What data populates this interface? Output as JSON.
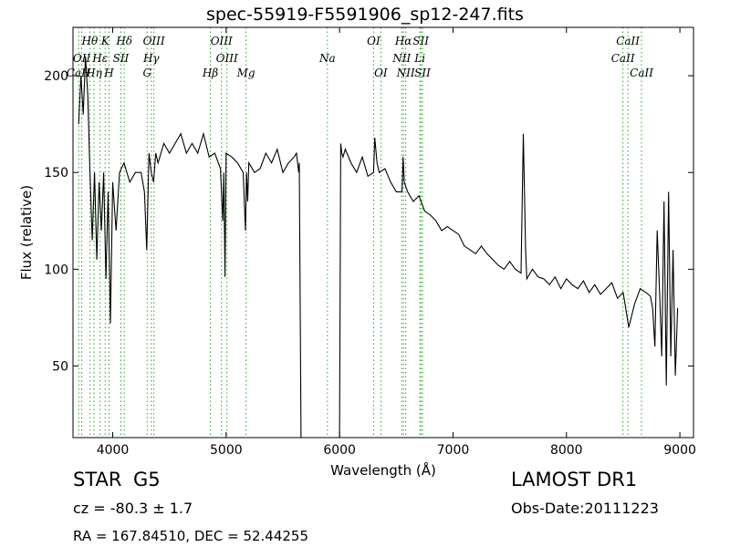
{
  "chart_data": {
    "type": "line",
    "title": "spec-55919-F5591906_sp12-247.fits",
    "xlabel": "Wavelength (Å)",
    "ylabel": "Flux (relative)",
    "xlim": [
      3650,
      9120
    ],
    "ylim": [
      13,
      225
    ],
    "x_ticks": [
      4000,
      5000,
      6000,
      7000,
      8000,
      9000
    ],
    "y_ticks": [
      50,
      100,
      150,
      200
    ],
    "grid": false,
    "line_color": "#000000",
    "marker_color": "#22aa22",
    "series": [
      {
        "x": [
          3700,
          3720,
          3740,
          3760,
          3780,
          3800,
          3820,
          3840,
          3860,
          3880,
          3900,
          3920,
          3940,
          3960,
          3980,
          4000,
          4030,
          4060,
          4100,
          4150,
          4200,
          4250,
          4280,
          4300,
          4320,
          4340,
          4360,
          4380,
          4400,
          4450,
          4500,
          4550,
          4600,
          4650,
          4700,
          4750,
          4800,
          4850,
          4900,
          4950,
          4970,
          4980,
          4990,
          5000,
          5050,
          5100,
          5150,
          5170,
          5180,
          5190,
          5200,
          5250,
          5300,
          5350,
          5400,
          5450,
          5500,
          5550,
          5600,
          5620,
          5640,
          5645,
          5660,
          5800,
          6000,
          6010,
          6020,
          6030,
          6050,
          6100,
          6150,
          6200,
          6250,
          6300,
          6310,
          6330,
          6350,
          6400,
          6450,
          6500,
          6550,
          6560,
          6570,
          6600,
          6650,
          6700,
          6750,
          6800,
          6850,
          6900,
          6950,
          7000,
          7050,
          7100,
          7150,
          7200,
          7250,
          7300,
          7350,
          7400,
          7450,
          7500,
          7550,
          7600,
          7620,
          7640,
          7650,
          7700,
          7750,
          7800,
          7850,
          7900,
          7950,
          8000,
          8050,
          8100,
          8150,
          8200,
          8250,
          8300,
          8350,
          8400,
          8450,
          8500,
          8550,
          8600,
          8650,
          8700,
          8740,
          8760,
          8780,
          8800,
          8820,
          8840,
          8860,
          8880,
          8900,
          8920,
          8940,
          8960,
          8980
        ],
        "y": [
          175,
          200,
          180,
          210,
          190,
          150,
          115,
          150,
          105,
          145,
          120,
          150,
          95,
          140,
          72,
          145,
          120,
          150,
          155,
          145,
          150,
          150,
          140,
          110,
          160,
          150,
          145,
          160,
          155,
          165,
          160,
          165,
          170,
          160,
          165,
          160,
          170,
          158,
          160,
          152,
          125,
          150,
          96,
          160,
          158,
          155,
          150,
          120,
          150,
          135,
          155,
          150,
          152,
          160,
          155,
          162,
          150,
          155,
          158,
          160,
          150,
          155,
          13,
          13,
          13,
          165,
          160,
          158,
          162,
          155,
          150,
          158,
          148,
          150,
          168,
          155,
          150,
          152,
          145,
          140,
          140,
          158,
          145,
          140,
          135,
          138,
          130,
          128,
          125,
          120,
          122,
          120,
          118,
          112,
          110,
          108,
          112,
          108,
          105,
          102,
          100,
          104,
          100,
          98,
          170,
          110,
          95,
          100,
          96,
          95,
          92,
          96,
          90,
          95,
          92,
          90,
          94,
          88,
          92,
          87,
          90,
          93,
          85,
          88,
          70,
          82,
          90,
          88,
          86,
          80,
          60,
          120,
          90,
          55,
          135,
          40,
          140,
          55,
          110,
          45,
          80
        ],
        "gap": [
          5660,
          6000
        ]
      }
    ],
    "line_markers": [
      {
        "label": "Hθ",
        "x": 3798,
        "row": 0
      },
      {
        "label": "K",
        "x": 3934,
        "row": 0
      },
      {
        "label": "Hδ",
        "x": 4102,
        "row": 0
      },
      {
        "label": "OIII",
        "x": 4363,
        "row": 0
      },
      {
        "label": "OIII",
        "x": 4959,
        "row": 0
      },
      {
        "label": "OI",
        "x": 6300,
        "row": 0
      },
      {
        "label": "Hα",
        "x": 6563,
        "row": 0
      },
      {
        "label": "SII",
        "x": 6716,
        "row": 0
      },
      {
        "label": "CaII",
        "x": 8542,
        "row": 0
      },
      {
        "label": "OII",
        "x": 3727,
        "row": 1
      },
      {
        "label": "Hε",
        "x": 3889,
        "row": 1
      },
      {
        "label": "SII",
        "x": 4072,
        "row": 1
      },
      {
        "label": "Hγ",
        "x": 4340,
        "row": 1
      },
      {
        "label": "OIII",
        "x": 5007,
        "row": 1
      },
      {
        "label": "Na",
        "x": 5893,
        "row": 1
      },
      {
        "label": "NII",
        "x": 6548,
        "row": 1
      },
      {
        "label": "Li",
        "x": 6708,
        "row": 1
      },
      {
        "label": "CaII",
        "x": 8498,
        "row": 1
      },
      {
        "label": "Hη",
        "x": 3835,
        "row": 2
      },
      {
        "label": "H",
        "x": 3968,
        "row": 2
      },
      {
        "label": "G",
        "x": 4304,
        "row": 2
      },
      {
        "label": "Hβ",
        "x": 4861,
        "row": 2
      },
      {
        "label": "Mg",
        "x": 5175,
        "row": 2
      },
      {
        "label": "OI",
        "x": 6364,
        "row": 2
      },
      {
        "label": "NII",
        "x": 6583,
        "row": 2
      },
      {
        "label": "SII",
        "x": 6731,
        "row": 2
      },
      {
        "label": "CaII",
        "x": 8662,
        "row": 2
      },
      {
        "label": "CaH",
        "x": 3700,
        "row": 2
      }
    ]
  },
  "info": {
    "class": "STAR",
    "subclass": "G5",
    "survey": "LAMOST DR1",
    "cz": "cz = -80.3 ± 1.7",
    "obs_date": "Obs-Date:20111223",
    "radec": "RA = 167.84510, DEC = 52.44255"
  }
}
